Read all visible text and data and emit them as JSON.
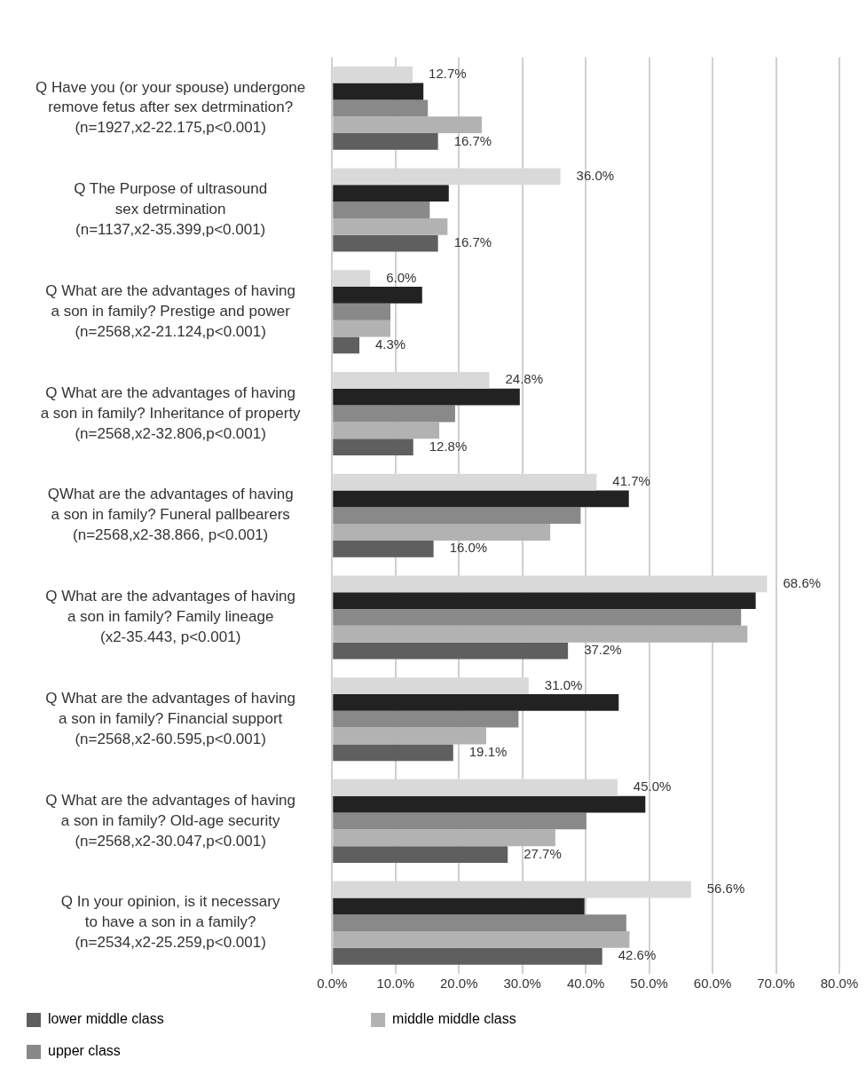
{
  "chart_data": {
    "type": "bar",
    "orientation": "horizontal",
    "categories": [
      "Q Have you (or your spouse) undergone\nremove fetus after sex detrmination?\n(n=1927,x2-22.175,p<0.001)",
      "Q The Purpose of ultrasound\nsex detrmination\n(n=1137,x2-35.399,p<0.001)",
      "Q What are the advantages of having\na son in family? Prestige and power\n(n=2568,x2-21.124,p<0.001)",
      "Q What are the advantages of having\na son in family? Inheritance of property\n(n=2568,x2-32.806,p<0.001)",
      "QWhat are the advantages of having\na son in family? Funeral pallbearers\n(n=2568,x2-38.866, p<0.001)",
      "Q What are the advantages of having\na son in family? Family lineage\n(x2-35.443, p<0.001)",
      "Q What are the advantages of having\na son in family? Financial support\n(n=2568,x2-60.595,p<0.001)",
      "Q What are the advantages of having\na son in family? Old-age security\n(n=2568,x2-30.047,p<0.001)",
      "Q In your opinion, is it necessary\nto have a son in a family?\n(n=2534,x2-25.259,p<0.001)"
    ],
    "series": [
      {
        "color": "#d9d9d9",
        "values": [
          12.7,
          36.0,
          6.0,
          24.8,
          41.7,
          68.6,
          31.0,
          45.0,
          56.6
        ],
        "value_labels": [
          "12.7%",
          "36.0%",
          "6.0%",
          "24.8%",
          "41.7%",
          "68.6%",
          "31.0%",
          "45.0%",
          "56.6%"
        ]
      },
      {
        "color": "#222222",
        "values": [
          14.4,
          18.4,
          14.2,
          29.6,
          46.8,
          66.8,
          45.2,
          49.4,
          39.8
        ]
      },
      {
        "name": "upper class",
        "color": "#898989",
        "values": [
          15.1,
          15.4,
          9.2,
          19.4,
          39.2,
          64.5,
          29.4,
          40.1,
          46.4
        ]
      },
      {
        "name": "middle middle class",
        "color": "#b2b2b2",
        "values": [
          23.6,
          18.2,
          9.2,
          16.9,
          34.4,
          65.5,
          24.3,
          35.2,
          46.9
        ]
      },
      {
        "name": "lower middle class",
        "color": "#5f5f5f",
        "values": [
          16.7,
          16.7,
          4.3,
          12.8,
          16.0,
          37.2,
          19.1,
          27.7,
          42.6
        ],
        "value_labels": [
          "16.7%",
          "16.7%",
          "4.3%",
          "12.8%",
          "16.0%",
          "37.2%",
          "19.1%",
          "27.7%",
          "42.6%"
        ]
      }
    ],
    "xlim": [
      0,
      80
    ],
    "xticks": [
      {
        "value": 0,
        "label": "0.0%"
      },
      {
        "value": 10,
        "label": "10.0%"
      },
      {
        "value": 20,
        "label": "20.0%"
      },
      {
        "value": 30,
        "label": "30.0%"
      },
      {
        "value": 40,
        "label": "40.0%"
      },
      {
        "value": 50,
        "label": "50.0%"
      },
      {
        "value": 60,
        "label": "60.0%"
      },
      {
        "value": 70,
        "label": "70.0%"
      },
      {
        "value": 80,
        "label": "80.0%"
      }
    ],
    "grid": "x",
    "legend": "bottom"
  }
}
